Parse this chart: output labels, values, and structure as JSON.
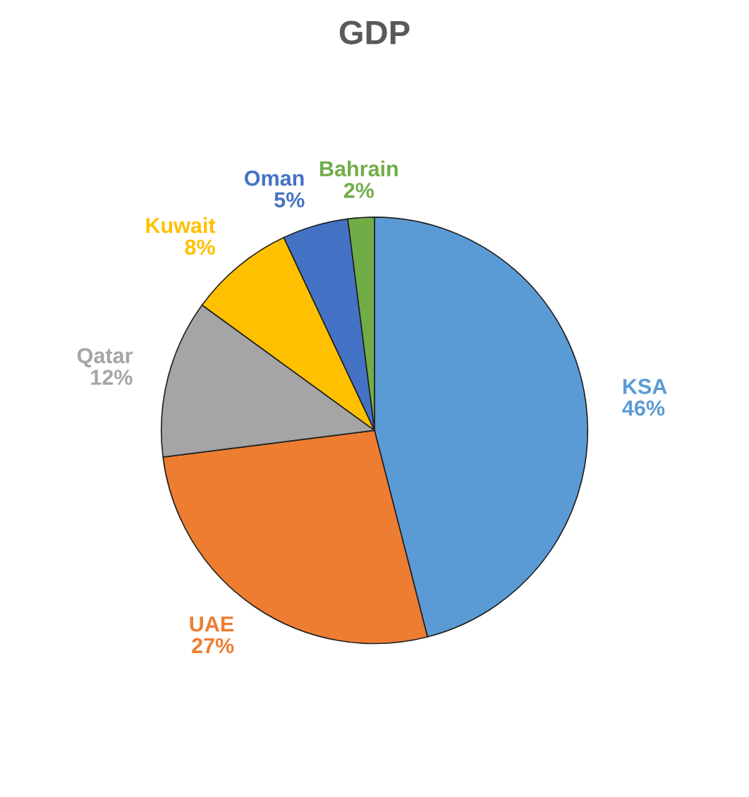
{
  "chart_data": {
    "type": "pie",
    "title": "GDP",
    "categories": [
      "KSA",
      "UAE",
      "Qatar",
      "Kuwait",
      "Oman",
      "Bahrain"
    ],
    "values": [
      46,
      27,
      12,
      8,
      5,
      2
    ],
    "value_labels": [
      "46%",
      "27%",
      "12%",
      "8%",
      "5%",
      "2%"
    ],
    "colors": [
      "#5b9bd5",
      "#ed7d31",
      "#a5a5a5",
      "#ffc000",
      "#4472c4",
      "#70ad47"
    ],
    "legend": false
  }
}
